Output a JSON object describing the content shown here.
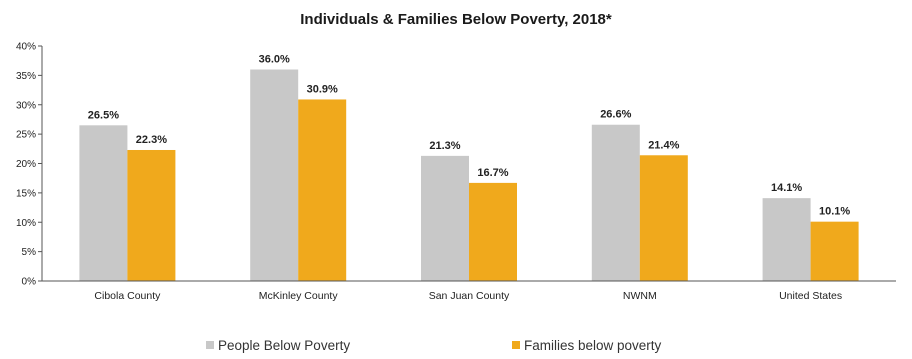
{
  "chart_data": {
    "type": "bar",
    "title": "Individuals & Families Below Poverty, 2018*",
    "categories": [
      "Cibola County",
      "McKinley County",
      "San Juan County",
      "NWNM",
      "United States"
    ],
    "series": [
      {
        "name": "People Below Poverty",
        "color": "#c8c8c8",
        "values": [
          26.5,
          36.0,
          21.3,
          26.6,
          14.1
        ],
        "labels": [
          "26.5%",
          "36.0%",
          "21.3%",
          "26.6%",
          "14.1%"
        ]
      },
      {
        "name": "Families below poverty",
        "color": "#f0a91c",
        "values": [
          22.3,
          30.9,
          16.7,
          21.4,
          10.1
        ],
        "labels": [
          "22.3%",
          "30.9%",
          "16.7%",
          "21.4%",
          "10.1%"
        ]
      }
    ],
    "ylim": [
      0,
      40
    ],
    "yticks": [
      "0%",
      "5%",
      "10%",
      "15%",
      "20%",
      "25%",
      "30%",
      "35%",
      "40%"
    ],
    "xlabel": "",
    "ylabel": "",
    "grid": false,
    "legend_position": "bottom"
  }
}
